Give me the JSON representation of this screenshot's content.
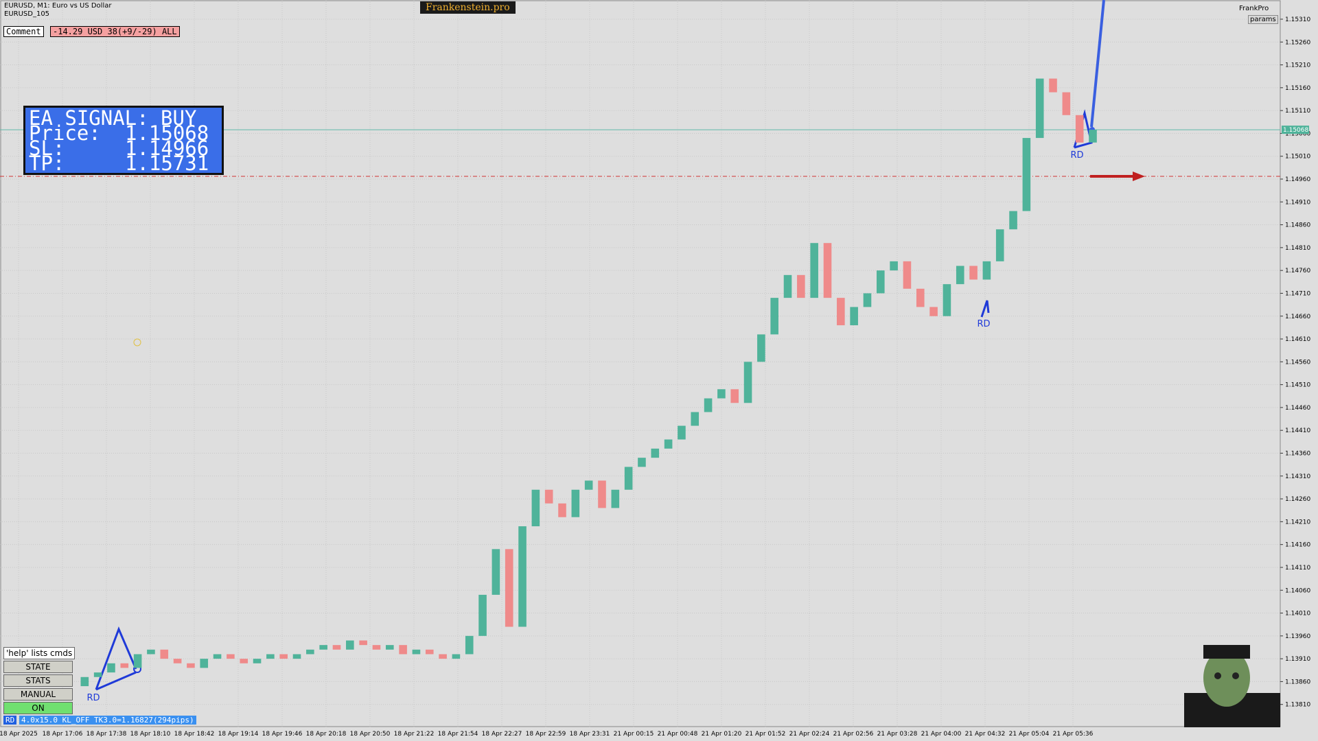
{
  "header": {
    "symbol": "EURUSD, M1:  Euro vs US Dollar",
    "account": "EURUSD_105",
    "brand": "Frankenstein.pro",
    "app": "FrankPro",
    "params": "params"
  },
  "comment": {
    "label": "Comment",
    "value": "-14.29 USD 38(+9/-29) ALL"
  },
  "signal": {
    "title": "EA SIGNAL: BUY",
    "rows": [
      {
        "label": "Price:",
        "value": "1.15068"
      },
      {
        "label": "SL:",
        "value": "1.14966"
      },
      {
        "label": "TP:",
        "value": "1.15731"
      }
    ]
  },
  "pattern_labels": [
    "RD",
    "RD",
    "RD"
  ],
  "buttons": [
    "'help' lists cmds",
    "STATE",
    "STATS",
    "MANUAL",
    "ON"
  ],
  "status": {
    "tag": "RD",
    "text": "4.0x15.0 KL_OFF TK3.0=1.16827(294pips)"
  },
  "chart_data": {
    "type": "candlestick",
    "ylim": [
      1.1376,
      1.15352
    ],
    "yticks": [
      {
        "value": 1.1381,
        "label": "1.13810"
      },
      {
        "value": 1.1386,
        "label": "1.13860"
      },
      {
        "value": 1.1391,
        "label": "1.13910"
      },
      {
        "value": 1.1396,
        "label": "1.13960"
      },
      {
        "value": 1.1401,
        "label": "1.14010"
      },
      {
        "value": 1.1406,
        "label": "1.14060"
      },
      {
        "value": 1.1411,
        "label": "1.14110"
      },
      {
        "value": 1.1416,
        "label": "1.14160"
      },
      {
        "value": 1.1421,
        "label": "1.14210"
      },
      {
        "value": 1.1426,
        "label": "1.14260"
      },
      {
        "value": 1.1431,
        "label": "1.14310"
      },
      {
        "value": 1.1436,
        "label": "1.14360"
      },
      {
        "value": 1.1441,
        "label": "1.14410"
      },
      {
        "value": 1.1446,
        "label": "1.14460"
      },
      {
        "value": 1.1451,
        "label": "1.14510"
      },
      {
        "value": 1.1456,
        "label": "1.14560"
      },
      {
        "value": 1.1461,
        "label": "1.14610"
      },
      {
        "value": 1.1466,
        "label": "1.14660"
      },
      {
        "value": 1.1471,
        "label": "1.14710"
      },
      {
        "value": 1.1476,
        "label": "1.14760"
      },
      {
        "value": 1.1481,
        "label": "1.14810"
      },
      {
        "value": 1.1486,
        "label": "1.14860"
      },
      {
        "value": 1.1491,
        "label": "1.14910"
      },
      {
        "value": 1.1496,
        "label": "1.14960"
      },
      {
        "value": 1.1501,
        "label": "1.15010"
      },
      {
        "value": 1.1506,
        "label": "1.15060"
      },
      {
        "value": 1.1511,
        "label": "1.15110"
      },
      {
        "value": 1.1516,
        "label": "1.15160"
      },
      {
        "value": 1.1521,
        "label": "1.15210"
      },
      {
        "value": 1.1526,
        "label": "1.15260"
      },
      {
        "value": 1.1531,
        "label": "1.15310"
      }
    ],
    "time_labels": [
      "18 Apr 2025",
      "18 Apr 17:06",
      "18 Apr 17:38",
      "18 Apr 18:10",
      "18 Apr 18:42",
      "18 Apr 19:14",
      "18 Apr 19:46",
      "18 Apr 20:18",
      "18 Apr 20:50",
      "18 Apr 21:22",
      "18 Apr 21:54",
      "18 Apr 22:27",
      "18 Apr 22:59",
      "18 Apr 23:31",
      "21 Apr 00:15",
      "21 Apr 00:48",
      "21 Apr 01:20",
      "21 Apr 01:52",
      "21 Apr 02:24",
      "21 Apr 02:56",
      "21 Apr 03:28",
      "21 Apr 04:00",
      "21 Apr 04:32",
      "21 Apr 05:04",
      "21 Apr 05:36"
    ],
    "up_color": "#4fb39a",
    "down_color": "#ef8a8a",
    "grid": true,
    "close": [
      1.1385,
      1.1387,
      1.1388,
      1.139,
      1.1389,
      1.1392,
      1.1393,
      1.1391,
      1.139,
      1.1389,
      1.1391,
      1.1392,
      1.1391,
      1.139,
      1.1391,
      1.1392,
      1.1391,
      1.1392,
      1.1393,
      1.1394,
      1.1393,
      1.1395,
      1.1394,
      1.1393,
      1.1394,
      1.1392,
      1.1393,
      1.1392,
      1.1391,
      1.1392,
      1.1396,
      1.1405,
      1.1415,
      1.1398,
      1.142,
      1.1428,
      1.1425,
      1.1422,
      1.1428,
      1.143,
      1.1424,
      1.1428,
      1.1433,
      1.1435,
      1.1437,
      1.1439,
      1.1442,
      1.1445,
      1.1448,
      1.145,
      1.1447,
      1.1456,
      1.1462,
      1.147,
      1.1475,
      1.147,
      1.1482,
      1.147,
      1.1464,
      1.1468,
      1.1471,
      1.1476,
      1.1478,
      1.1472,
      1.1468,
      1.1466,
      1.1473,
      1.1477,
      1.1474,
      1.1478,
      1.1485,
      1.1489,
      1.1505,
      1.1518,
      1.1515,
      1.151,
      1.1504,
      1.15068
    ]
  }
}
